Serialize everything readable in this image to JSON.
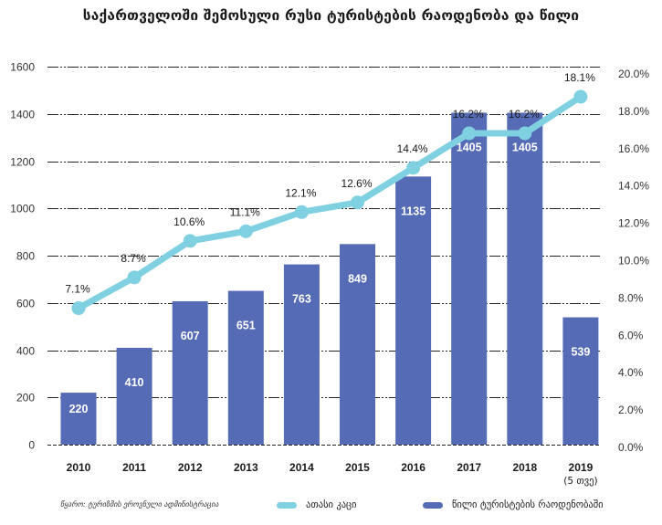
{
  "title": "საქართველოში შემოსული რუსი ტურისტების რაოდენობა და წილი",
  "source": "წყარო: ტურიზმის ეროვნული ადმინისტრაცია",
  "legend": [
    {
      "label": "ათასი კაცი",
      "color": "#7fd0e0"
    },
    {
      "label": "წილი ტურისტების რაოდენობაში",
      "color": "#556bb5"
    }
  ],
  "chart_data": {
    "type": "bar",
    "title": "საქართველოში შემოსული რუსი ტურისტების რაოდენობა და წილი",
    "categories": [
      "2010",
      "2011",
      "2012",
      "2013",
      "2014",
      "2015",
      "2016",
      "2017",
      "2018",
      "2019"
    ],
    "category_sublabels": [
      "",
      "",
      "",
      "",
      "",
      "",
      "",
      "",
      "",
      "(5 თვე)"
    ],
    "series": [
      {
        "name": "bars",
        "type": "bar",
        "axis": "left",
        "color": "#556bb5",
        "values": [
          220,
          410,
          607,
          651,
          763,
          849,
          1135,
          1405,
          1405,
          539
        ],
        "labels": [
          "220",
          "410",
          "607",
          "651",
          "763",
          "849",
          "1135",
          "1405",
          "1405",
          "539"
        ]
      },
      {
        "name": "share",
        "type": "line",
        "axis": "right",
        "color": "#7fd0e0",
        "values": [
          7.1,
          8.7,
          10.6,
          11.1,
          12.1,
          12.6,
          14.4,
          16.2,
          16.2,
          18.1
        ],
        "labels": [
          "7.1%",
          "8.7%",
          "10.6%",
          "11.1%",
          "12.1%",
          "12.6%",
          "14.4%",
          "16.2%",
          "16.2%",
          "18.1%"
        ]
      }
    ],
    "left_axis": {
      "ylim": [
        0,
        1600
      ],
      "ticks": [
        "0",
        "200",
        "400",
        "600",
        "800",
        "1000",
        "1200",
        "1400",
        "1600"
      ]
    },
    "right_axis": {
      "ylim": [
        0,
        20
      ],
      "ticks": [
        "0.0%",
        "2.0%",
        "4.0%",
        "6.0%",
        "8.0%",
        "10.0%",
        "12.0%",
        "14.0%",
        "16.0%",
        "18.0%",
        "20.0%"
      ]
    },
    "grid": true,
    "legend_position": "bottom"
  }
}
